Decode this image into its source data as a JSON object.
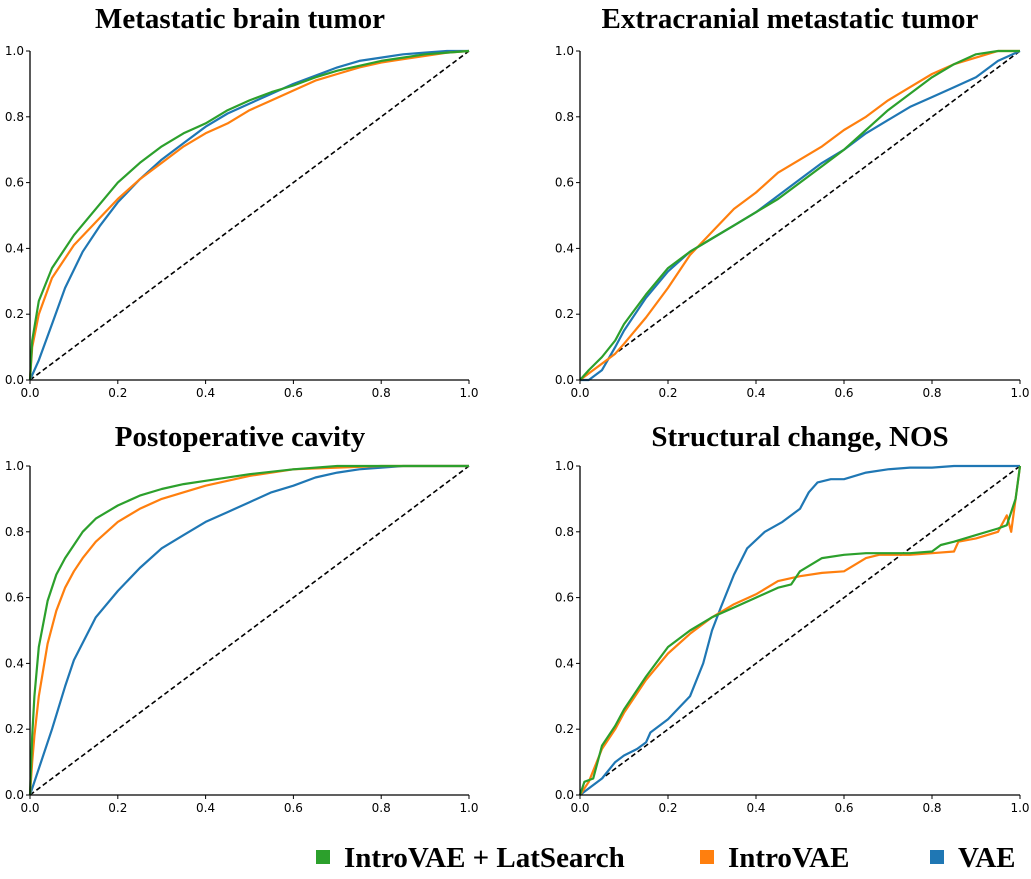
{
  "chart_data": [
    {
      "type": "line",
      "title": "Metastatic brain tumor",
      "xlabel": "",
      "ylabel": "",
      "xlim": [
        0,
        1
      ],
      "ylim": [
        0,
        1
      ],
      "xticks": [
        "0.0",
        "0.2",
        "0.4",
        "0.6",
        "0.8",
        "1.0"
      ],
      "yticks": [
        "0.0",
        "0.2",
        "0.4",
        "0.6",
        "0.8",
        "1.0"
      ],
      "series": [
        {
          "name": "VAE",
          "x": [
            0,
            0.02,
            0.05,
            0.08,
            0.12,
            0.16,
            0.2,
            0.25,
            0.3,
            0.35,
            0.4,
            0.45,
            0.5,
            0.55,
            0.6,
            0.65,
            0.7,
            0.75,
            0.8,
            0.85,
            0.9,
            0.95,
            1.0
          ],
          "y": [
            0,
            0.06,
            0.17,
            0.28,
            0.39,
            0.47,
            0.54,
            0.61,
            0.67,
            0.72,
            0.77,
            0.81,
            0.84,
            0.87,
            0.9,
            0.925,
            0.95,
            0.97,
            0.98,
            0.99,
            0.995,
            1.0,
            1.0
          ]
        },
        {
          "name": "IntroVAE",
          "x": [
            0,
            0.005,
            0.02,
            0.05,
            0.1,
            0.15,
            0.2,
            0.25,
            0.3,
            0.35,
            0.4,
            0.45,
            0.5,
            0.55,
            0.6,
            0.65,
            0.7,
            0.75,
            0.8,
            0.85,
            0.9,
            0.95,
            1.0
          ],
          "y": [
            0,
            0.1,
            0.2,
            0.31,
            0.41,
            0.48,
            0.55,
            0.61,
            0.66,
            0.71,
            0.75,
            0.78,
            0.82,
            0.85,
            0.88,
            0.91,
            0.93,
            0.95,
            0.965,
            0.975,
            0.985,
            0.995,
            1.0
          ]
        },
        {
          "name": "IntroVAE + LatSearch",
          "x": [
            0,
            0.005,
            0.02,
            0.05,
            0.1,
            0.15,
            0.2,
            0.25,
            0.3,
            0.35,
            0.4,
            0.45,
            0.5,
            0.55,
            0.6,
            0.65,
            0.7,
            0.75,
            0.8,
            0.85,
            0.9,
            0.95,
            1.0
          ],
          "y": [
            0,
            0.12,
            0.24,
            0.34,
            0.44,
            0.52,
            0.6,
            0.66,
            0.71,
            0.75,
            0.78,
            0.82,
            0.85,
            0.875,
            0.895,
            0.92,
            0.94,
            0.955,
            0.97,
            0.98,
            0.99,
            0.995,
            1.0
          ]
        }
      ]
    },
    {
      "type": "line",
      "title": "Extracranial metastatic tumor",
      "xlabel": "",
      "ylabel": "",
      "xlim": [
        0,
        1
      ],
      "ylim": [
        0,
        1
      ],
      "xticks": [
        "0.0",
        "0.2",
        "0.4",
        "0.6",
        "0.8",
        "1.0"
      ],
      "yticks": [
        "0.0",
        "0.2",
        "0.4",
        "0.6",
        "0.8",
        "1.0"
      ],
      "series": [
        {
          "name": "VAE",
          "x": [
            0,
            0.02,
            0.05,
            0.08,
            0.1,
            0.15,
            0.2,
            0.25,
            0.3,
            0.35,
            0.4,
            0.45,
            0.5,
            0.55,
            0.6,
            0.65,
            0.7,
            0.75,
            0.8,
            0.85,
            0.9,
            0.95,
            1.0
          ],
          "y": [
            0,
            0.0,
            0.03,
            0.1,
            0.15,
            0.25,
            0.33,
            0.39,
            0.43,
            0.47,
            0.51,
            0.56,
            0.61,
            0.66,
            0.7,
            0.75,
            0.79,
            0.83,
            0.86,
            0.89,
            0.92,
            0.97,
            1.0
          ]
        },
        {
          "name": "IntroVAE",
          "x": [
            0,
            0.02,
            0.05,
            0.08,
            0.1,
            0.15,
            0.2,
            0.25,
            0.3,
            0.35,
            0.4,
            0.45,
            0.5,
            0.55,
            0.6,
            0.65,
            0.7,
            0.75,
            0.8,
            0.85,
            0.9,
            0.95,
            1.0
          ],
          "y": [
            0,
            0.02,
            0.05,
            0.08,
            0.11,
            0.19,
            0.28,
            0.38,
            0.45,
            0.52,
            0.57,
            0.63,
            0.67,
            0.71,
            0.76,
            0.8,
            0.85,
            0.89,
            0.93,
            0.96,
            0.98,
            1.0,
            1.0
          ]
        },
        {
          "name": "IntroVAE + LatSearch",
          "x": [
            0,
            0.02,
            0.05,
            0.08,
            0.1,
            0.15,
            0.2,
            0.25,
            0.3,
            0.35,
            0.4,
            0.45,
            0.5,
            0.55,
            0.6,
            0.65,
            0.7,
            0.75,
            0.8,
            0.85,
            0.9,
            0.95,
            1.0
          ],
          "y": [
            0,
            0.03,
            0.07,
            0.12,
            0.17,
            0.26,
            0.34,
            0.39,
            0.43,
            0.47,
            0.51,
            0.55,
            0.6,
            0.65,
            0.7,
            0.76,
            0.82,
            0.87,
            0.92,
            0.96,
            0.99,
            1.0,
            1.0
          ]
        }
      ]
    },
    {
      "type": "line",
      "title": "Postoperative cavity",
      "xlabel": "",
      "ylabel": "",
      "xlim": [
        0,
        1
      ],
      "ylim": [
        0,
        1
      ],
      "xticks": [
        "0.0",
        "0.2",
        "0.4",
        "0.6",
        "0.8",
        "1.0"
      ],
      "yticks": [
        "0.0",
        "0.2",
        "0.4",
        "0.6",
        "0.8",
        "1.0"
      ],
      "series": [
        {
          "name": "VAE",
          "x": [
            0,
            0.02,
            0.05,
            0.08,
            0.1,
            0.15,
            0.2,
            0.25,
            0.3,
            0.35,
            0.4,
            0.45,
            0.5,
            0.55,
            0.6,
            0.65,
            0.7,
            0.75,
            0.8,
            0.85,
            0.9,
            1.0
          ],
          "y": [
            0,
            0.08,
            0.2,
            0.33,
            0.41,
            0.54,
            0.62,
            0.69,
            0.75,
            0.79,
            0.83,
            0.86,
            0.89,
            0.92,
            0.94,
            0.965,
            0.98,
            0.99,
            0.995,
            1.0,
            1.0,
            1.0
          ]
        },
        {
          "name": "IntroVAE",
          "x": [
            0,
            0.005,
            0.01,
            0.02,
            0.04,
            0.06,
            0.08,
            0.1,
            0.12,
            0.15,
            0.2,
            0.25,
            0.3,
            0.35,
            0.4,
            0.5,
            0.6,
            0.7,
            0.8,
            0.9,
            1.0
          ],
          "y": [
            0,
            0.1,
            0.18,
            0.3,
            0.46,
            0.56,
            0.63,
            0.68,
            0.72,
            0.77,
            0.83,
            0.87,
            0.9,
            0.92,
            0.94,
            0.97,
            0.99,
            0.995,
            1.0,
            1.0,
            1.0
          ]
        },
        {
          "name": "IntroVAE + LatSearch",
          "x": [
            0,
            0.005,
            0.01,
            0.02,
            0.04,
            0.06,
            0.08,
            0.1,
            0.12,
            0.15,
            0.2,
            0.25,
            0.3,
            0.35,
            0.4,
            0.5,
            0.6,
            0.7,
            0.8,
            0.9,
            1.0
          ],
          "y": [
            0,
            0.18,
            0.3,
            0.45,
            0.59,
            0.67,
            0.72,
            0.76,
            0.8,
            0.84,
            0.88,
            0.91,
            0.93,
            0.945,
            0.955,
            0.975,
            0.99,
            1.0,
            1.0,
            1.0,
            1.0
          ]
        }
      ]
    },
    {
      "type": "line",
      "title": "Structural change, NOS",
      "xlabel": "",
      "ylabel": "",
      "xlim": [
        0,
        1
      ],
      "ylim": [
        0,
        1
      ],
      "xticks": [
        "0.0",
        "0.2",
        "0.4",
        "0.6",
        "0.8",
        "1.0"
      ],
      "yticks": [
        "0.0",
        "0.2",
        "0.4",
        "0.6",
        "0.8",
        "1.0"
      ],
      "series": [
        {
          "name": "VAE",
          "x": [
            0,
            0.02,
            0.05,
            0.08,
            0.1,
            0.13,
            0.15,
            0.16,
            0.2,
            0.25,
            0.28,
            0.3,
            0.32,
            0.35,
            0.38,
            0.42,
            0.46,
            0.5,
            0.52,
            0.54,
            0.57,
            0.6,
            0.65,
            0.7,
            0.75,
            0.8,
            0.85,
            0.9,
            0.95,
            1.0
          ],
          "y": [
            0,
            0.02,
            0.05,
            0.1,
            0.12,
            0.14,
            0.16,
            0.19,
            0.23,
            0.3,
            0.4,
            0.5,
            0.57,
            0.67,
            0.75,
            0.8,
            0.83,
            0.87,
            0.92,
            0.95,
            0.96,
            0.96,
            0.98,
            0.99,
            0.995,
            0.995,
            1.0,
            1.0,
            1.0,
            1.0
          ]
        },
        {
          "name": "IntroVAE",
          "x": [
            0,
            0.01,
            0.02,
            0.05,
            0.08,
            0.1,
            0.15,
            0.2,
            0.25,
            0.3,
            0.35,
            0.4,
            0.45,
            0.5,
            0.55,
            0.6,
            0.65,
            0.68,
            0.7,
            0.75,
            0.8,
            0.85,
            0.86,
            0.9,
            0.95,
            0.97,
            0.98,
            0.99,
            1.0
          ],
          "y": [
            0,
            0.02,
            0.04,
            0.14,
            0.2,
            0.25,
            0.35,
            0.43,
            0.49,
            0.54,
            0.58,
            0.61,
            0.65,
            0.665,
            0.675,
            0.68,
            0.72,
            0.73,
            0.73,
            0.73,
            0.735,
            0.74,
            0.77,
            0.78,
            0.8,
            0.85,
            0.8,
            0.9,
            1.0
          ]
        },
        {
          "name": "IntroVAE + LatSearch",
          "x": [
            0,
            0.01,
            0.03,
            0.05,
            0.08,
            0.1,
            0.15,
            0.2,
            0.25,
            0.3,
            0.35,
            0.4,
            0.45,
            0.48,
            0.5,
            0.55,
            0.6,
            0.65,
            0.7,
            0.75,
            0.8,
            0.82,
            0.85,
            0.9,
            0.95,
            0.97,
            0.99,
            1.0
          ],
          "y": [
            0,
            0.04,
            0.05,
            0.15,
            0.21,
            0.26,
            0.36,
            0.45,
            0.5,
            0.54,
            0.57,
            0.6,
            0.63,
            0.64,
            0.68,
            0.72,
            0.73,
            0.735,
            0.735,
            0.735,
            0.74,
            0.76,
            0.77,
            0.79,
            0.81,
            0.82,
            0.9,
            1.0
          ]
        }
      ]
    }
  ],
  "legend": [
    {
      "label": "IntroVAE + LatSearch",
      "color": "#2ca02c"
    },
    {
      "label": "IntroVAE",
      "color": "#ff7f0e"
    },
    {
      "label": "VAE",
      "color": "#1f77b4"
    }
  ],
  "colors": {
    "VAE": "#1f77b4",
    "IntroVAE": "#ff7f0e",
    "IntroVAE + LatSearch": "#2ca02c",
    "diagonal": "#000000"
  }
}
